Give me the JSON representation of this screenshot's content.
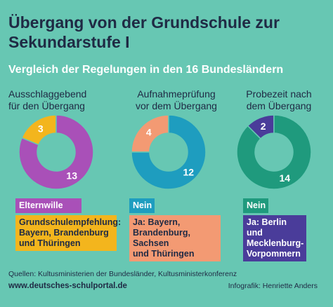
{
  "title_line1": "Übergang von der Grundschule zur",
  "title_line2": "Sekundarstufe I",
  "subtitle": "Vergleich der Regelungen in den 16 Bundesländern",
  "colors": {
    "background": "#67c7b3",
    "purple": "#a950b8",
    "yellow": "#f3b51d",
    "blue": "#1e9dbf",
    "salmon": "#f39a73",
    "navy": "#4a3c9a",
    "green": "#1f9a7d"
  },
  "chart_data": [
    {
      "type": "pie",
      "title": "Ausschlaggebend für den Übergang",
      "categories": [
        "Elternwille",
        "Grundschulempfehlung: Bayern, Brandenburg und Thüringen"
      ],
      "values": [
        13,
        3
      ],
      "value_labels": [
        "13",
        "3"
      ],
      "colors": [
        "#a950b8",
        "#f3b51d"
      ]
    },
    {
      "type": "pie",
      "title": "Aufnahmeprüfung vor dem Übergang",
      "categories": [
        "Nein",
        "Ja: Bayern, Brandenburg, Sachsen und Thüringen"
      ],
      "values": [
        12,
        4
      ],
      "value_labels": [
        "12",
        "4"
      ],
      "colors": [
        "#1e9dbf",
        "#f39a73"
      ]
    },
    {
      "type": "pie",
      "title": "Probezeit nach dem Übergang",
      "categories": [
        "Nein",
        "Ja: Berlin und Mecklenburg-Vorpommern"
      ],
      "values": [
        14,
        2
      ],
      "value_labels": [
        "14",
        "2"
      ],
      "colors": [
        "#1f9a7d",
        "#4a3c9a"
      ]
    }
  ],
  "headers": [
    [
      "Ausschlaggebend",
      "für den Übergang"
    ],
    [
      "Aufnahmeprüfung",
      "vor dem Übergang"
    ],
    [
      "Probezeit nach",
      "dem Übergang"
    ]
  ],
  "badges": [
    {
      "main": [
        "Elternwille"
      ],
      "alt": [
        "Grundschulempfehlung:",
        "Bayern, Brandenburg",
        "und Thüringen"
      ]
    },
    {
      "main": [
        "Nein"
      ],
      "alt": [
        "Ja: Bayern,",
        "Brandenburg, Sachsen",
        "und Thüringen"
      ]
    },
    {
      "main": [
        "Nein"
      ],
      "alt": [
        "Ja: Berlin und",
        "Mecklenburg-",
        "Vorpommern"
      ]
    }
  ],
  "footer": {
    "sources": "Quellen: Kultusministerien der Bundesländer, Kultusministerkonferenz",
    "url": "www.deutsches-schulportal.de",
    "credit": "Infografik: Henriette Anders"
  }
}
